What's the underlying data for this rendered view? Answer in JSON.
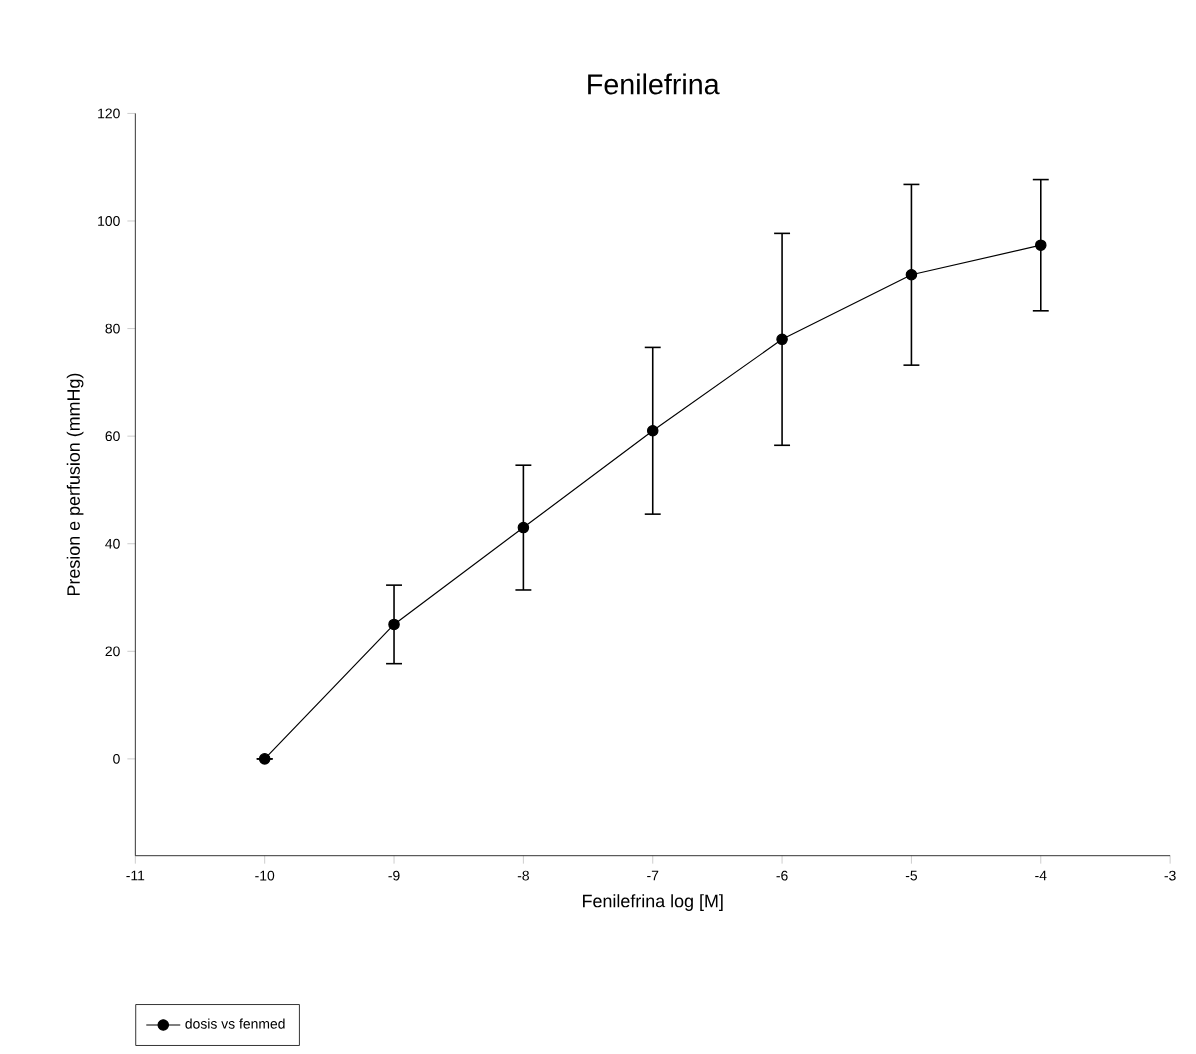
{
  "chart_data": {
    "type": "line",
    "title": "Fenilefrina",
    "xlabel": "Fenilefrina log [M]",
    "ylabel": "Presion e perfusion (mmHg)",
    "x": [
      -10,
      -9,
      -8,
      -7,
      -6,
      -5,
      -4
    ],
    "series": [
      {
        "name": "dosis vs fenmed",
        "color": "#000000",
        "values": [
          0,
          25,
          43,
          61,
          78,
          90,
          95.5
        ],
        "errors": [
          null,
          7.3,
          11.6,
          15.5,
          19.7,
          16.8,
          12.2
        ]
      }
    ],
    "xlim": [
      -11,
      -3
    ],
    "xticks": [
      -11,
      -10,
      -9,
      -8,
      -7,
      -6,
      -5,
      -4,
      -3
    ],
    "ylim": [
      -18,
      120
    ],
    "yticks": [
      0,
      20,
      40,
      60,
      80,
      100,
      120
    ],
    "marker": "circle",
    "line_style": "solid",
    "legend": "bottom left",
    "grid": false
  }
}
